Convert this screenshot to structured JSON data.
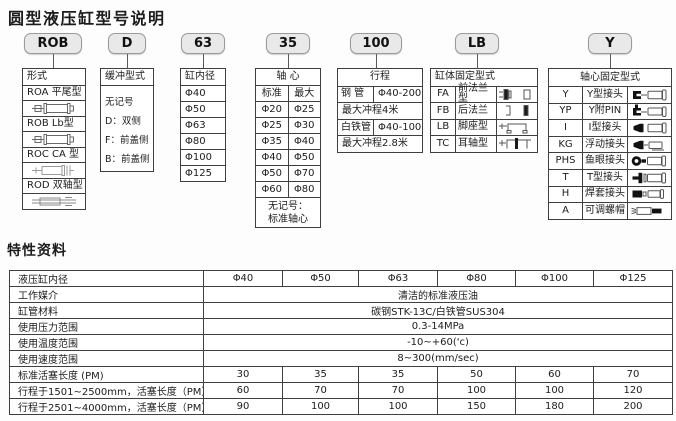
{
  "title": "圆型液压缸型号说明",
  "section2_title": "特性资料",
  "columns": [
    {
      "chip": "ROB",
      "header": "形式",
      "rows": [
        {
          "label": "ROA 平尾型",
          "icon": "cylinder-flat-tail"
        },
        {
          "label": "ROB Lb型",
          "icon": "cylinder-lb"
        },
        {
          "label": "ROC CA 型",
          "icon": "cylinder-ca"
        },
        {
          "label": "ROD 双轴型",
          "icon": "cylinder-double-rod"
        }
      ]
    },
    {
      "chip": "D",
      "header": "缓冲型式",
      "lines": [
        "无记号",
        "D：双侧",
        "F：前盖侧",
        "B：前盖侧"
      ]
    },
    {
      "chip": "63",
      "header": "缸内径",
      "values": [
        "Φ40",
        "Φ50",
        "Φ63",
        "Φ80",
        "Φ100",
        "Φ125"
      ]
    },
    {
      "chip": "35",
      "header": "轴 心",
      "subheaders": [
        "标准",
        "最大"
      ],
      "pairs": [
        [
          "Φ20",
          "Φ25"
        ],
        [
          "Φ25",
          "Φ30"
        ],
        [
          "Φ35",
          "Φ40"
        ],
        [
          "Φ40",
          "Φ50"
        ],
        [
          "Φ50",
          "Φ70"
        ],
        [
          "Φ60",
          "Φ80"
        ]
      ],
      "footer_lines": [
        "无记号：",
        "标准轴心"
      ]
    },
    {
      "chip": "100",
      "header": "行程",
      "rows": [
        {
          "k": "钢 管",
          "v": "Φ40-200"
        },
        {
          "span": "最大冲程4米"
        },
        {
          "k": "白铁管",
          "v": "Φ40-100"
        },
        {
          "span": "最大冲程2.8米"
        }
      ]
    },
    {
      "chip": "LB",
      "header": "缸体固定型式",
      "rows": [
        {
          "code": "FA",
          "label": "前法兰型",
          "icon": "front-flange"
        },
        {
          "code": "FB",
          "label": "后法兰",
          "icon": "rear-flange"
        },
        {
          "code": "LB",
          "label": "脚座型",
          "icon": "foot-mount"
        },
        {
          "code": "TC",
          "label": "耳轴型",
          "icon": "trunnion"
        }
      ]
    },
    {
      "chip": "Y",
      "header": "轴心固定型式",
      "rows": [
        {
          "code": "Y",
          "label": "Y型接头",
          "icon": "y-clevis"
        },
        {
          "code": "YP",
          "label": "Y附PIN",
          "icon": "y-clevis-pin"
        },
        {
          "code": "I",
          "label": "I型接头",
          "icon": "i-joint"
        },
        {
          "code": "KG",
          "label": "浮动接头",
          "icon": "floating-joint"
        },
        {
          "code": "PHS",
          "label": "鱼眼接头",
          "icon": "fisheye-joint"
        },
        {
          "code": "T",
          "label": "T型接头",
          "icon": "t-joint"
        },
        {
          "code": "H",
          "label": "焊套接头",
          "icon": "weld-sleeve"
        },
        {
          "code": "A",
          "label": "可调螺帽",
          "icon": "adjustable-nut"
        }
      ]
    }
  ],
  "specs": {
    "bore_row": {
      "label": "液压缸内径",
      "values": [
        "Φ40",
        "Φ50",
        "Φ63",
        "Φ80",
        "Φ100",
        "Φ125"
      ]
    },
    "span_rows": [
      {
        "label": "工作媒介",
        "value": "清洁的标准液压油"
      },
      {
        "label": "缸管材料",
        "value": "碳钢STK-13C/白铁管SUS304"
      },
      {
        "label": "使用压力范围",
        "value": "0.3-14MPa"
      },
      {
        "label": "使用温度范围",
        "value": "-10~+60('c)"
      },
      {
        "label": "使用速度范围",
        "value": "8~300(mm/sec)"
      }
    ],
    "value_rows": [
      {
        "label": "标准活塞长度 (PM)",
        "values": [
          "30",
          "35",
          "35",
          "50",
          "60",
          "70"
        ]
      },
      {
        "label": "行程于1501~2500mm，活塞长度（PM）",
        "values": [
          "60",
          "70",
          "70",
          "100",
          "100",
          "120"
        ]
      },
      {
        "label": "行程于2501~4000mm，活塞长度（PM）",
        "values": [
          "90",
          "100",
          "100",
          "150",
          "180",
          "200"
        ]
      }
    ]
  },
  "colors": {
    "chip_bg": "#e9e9e9",
    "table_border": "#3f3f3f",
    "text": "#1c1c1c"
  }
}
